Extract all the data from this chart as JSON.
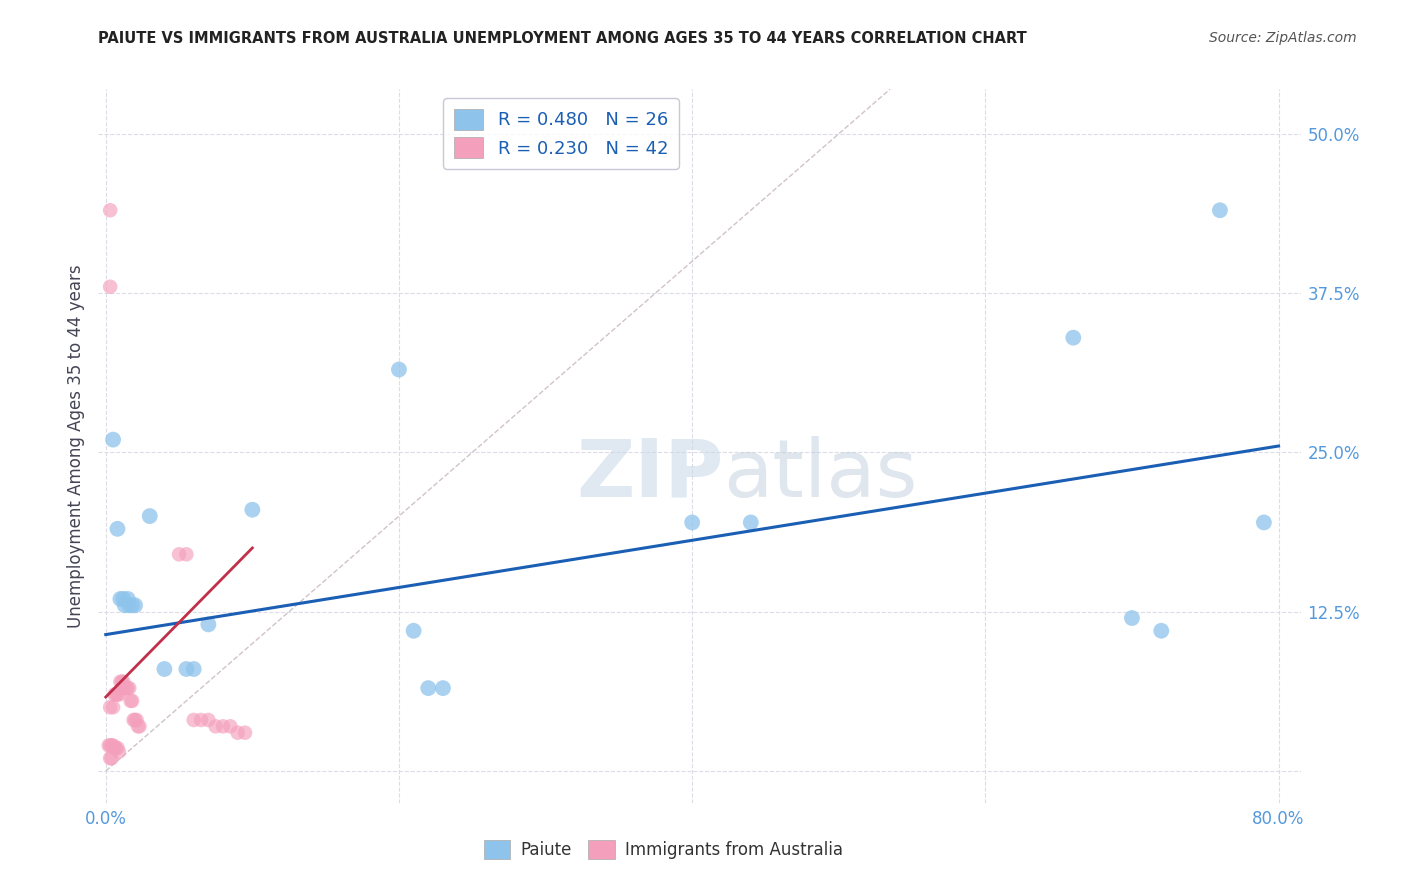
{
  "title": "PAIUTE VS IMMIGRANTS FROM AUSTRALIA UNEMPLOYMENT AMONG AGES 35 TO 44 YEARS CORRELATION CHART",
  "source": "Source: ZipAtlas.com",
  "ylabel": "Unemployment Among Ages 35 to 44 years",
  "xlim": [
    -0.005,
    0.815
  ],
  "ylim": [
    -0.025,
    0.535
  ],
  "watermark_zip": "ZIP",
  "watermark_atlas": "atlas",
  "blue_scatter": [
    [
      0.005,
      0.26
    ],
    [
      0.01,
      0.135
    ],
    [
      0.012,
      0.135
    ],
    [
      0.015,
      0.135
    ],
    [
      0.013,
      0.13
    ],
    [
      0.016,
      0.13
    ],
    [
      0.018,
      0.13
    ],
    [
      0.02,
      0.13
    ],
    [
      0.008,
      0.19
    ],
    [
      0.03,
      0.2
    ],
    [
      0.04,
      0.08
    ],
    [
      0.055,
      0.08
    ],
    [
      0.06,
      0.08
    ],
    [
      0.07,
      0.115
    ],
    [
      0.1,
      0.205
    ],
    [
      0.2,
      0.315
    ],
    [
      0.21,
      0.11
    ],
    [
      0.22,
      0.065
    ],
    [
      0.23,
      0.065
    ],
    [
      0.4,
      0.195
    ],
    [
      0.44,
      0.195
    ],
    [
      0.66,
      0.34
    ],
    [
      0.7,
      0.12
    ],
    [
      0.72,
      0.11
    ],
    [
      0.76,
      0.44
    ],
    [
      0.79,
      0.195
    ]
  ],
  "pink_scatter": [
    [
      0.003,
      0.44
    ],
    [
      0.003,
      0.38
    ],
    [
      0.002,
      0.02
    ],
    [
      0.003,
      0.02
    ],
    [
      0.004,
      0.02
    ],
    [
      0.005,
      0.02
    ],
    [
      0.006,
      0.018
    ],
    [
      0.007,
      0.018
    ],
    [
      0.008,
      0.018
    ],
    [
      0.009,
      0.015
    ],
    [
      0.003,
      0.01
    ],
    [
      0.004,
      0.01
    ],
    [
      0.003,
      0.05
    ],
    [
      0.005,
      0.05
    ],
    [
      0.006,
      0.06
    ],
    [
      0.007,
      0.06
    ],
    [
      0.008,
      0.06
    ],
    [
      0.009,
      0.06
    ],
    [
      0.01,
      0.07
    ],
    [
      0.011,
      0.07
    ],
    [
      0.012,
      0.07
    ],
    [
      0.013,
      0.065
    ],
    [
      0.014,
      0.065
    ],
    [
      0.015,
      0.065
    ],
    [
      0.016,
      0.065
    ],
    [
      0.017,
      0.055
    ],
    [
      0.018,
      0.055
    ],
    [
      0.019,
      0.04
    ],
    [
      0.02,
      0.04
    ],
    [
      0.021,
      0.04
    ],
    [
      0.022,
      0.035
    ],
    [
      0.023,
      0.035
    ],
    [
      0.05,
      0.17
    ],
    [
      0.055,
      0.17
    ],
    [
      0.06,
      0.04
    ],
    [
      0.065,
      0.04
    ],
    [
      0.07,
      0.04
    ],
    [
      0.075,
      0.035
    ],
    [
      0.08,
      0.035
    ],
    [
      0.085,
      0.035
    ],
    [
      0.09,
      0.03
    ],
    [
      0.095,
      0.03
    ]
  ],
  "blue_line_x": [
    0.0,
    0.8
  ],
  "blue_line_y": [
    0.107,
    0.255
  ],
  "pink_line_x": [
    0.0,
    0.1
  ],
  "pink_line_y": [
    0.058,
    0.175
  ],
  "diag_line_x": [
    0.0,
    0.535
  ],
  "diag_line_y": [
    0.0,
    0.535
  ],
  "scatter_blue_color": "#8ec4ec",
  "scatter_pink_color": "#f4a0bc",
  "line_blue_color": "#1a5fb4",
  "line_pink_color": "#c0304a",
  "diag_line_color": "#c8b8c0",
  "bg_color": "#ffffff",
  "grid_color": "#dcdce8",
  "title_color": "#222222",
  "source_color": "#555555",
  "tick_color": "#5599dd",
  "ylabel_color": "#444455",
  "legend_label_color": "#1a5fb4",
  "xtick_vals": [
    0.0,
    0.2,
    0.4,
    0.6,
    0.8
  ],
  "xtick_labels": [
    "0.0%",
    "",
    "",
    "",
    "80.0%"
  ],
  "ytick_vals": [
    0.0,
    0.125,
    0.25,
    0.375,
    0.5
  ],
  "ytick_labels": [
    "",
    "12.5%",
    "25.0%",
    "37.5%",
    "50.0%"
  ]
}
